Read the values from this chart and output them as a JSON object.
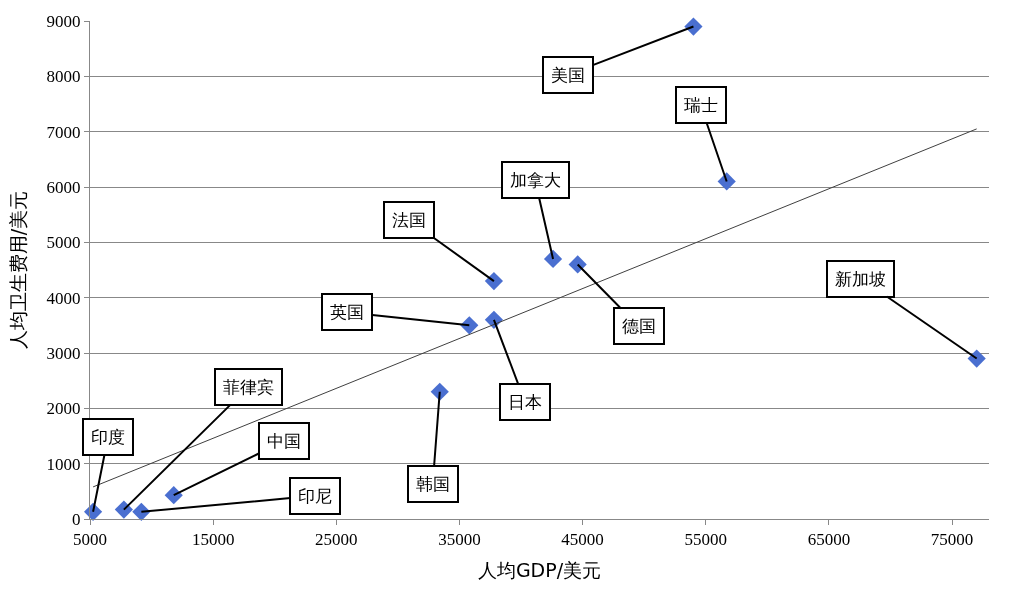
{
  "chart_data": {
    "type": "scatter",
    "xlabel": "人均GDP/美元",
    "ylabel": "人均卫生费用/美元",
    "xlim": [
      5000,
      78000
    ],
    "xticks": [
      5000,
      15000,
      25000,
      35000,
      45000,
      55000,
      65000,
      75000
    ],
    "ylim": [
      0,
      9000
    ],
    "yticks": [
      0,
      1000,
      2000,
      3000,
      4000,
      5000,
      6000,
      7000,
      8000,
      9000
    ],
    "grid": "y",
    "legend": false,
    "marker": "diamond",
    "series": [
      {
        "color": "#4a6fd0",
        "x": [
          54000,
          56700,
          42600,
          44600,
          37800,
          35800,
          37800,
          33400,
          77000,
          5250,
          7750,
          9170,
          11800
        ],
        "values": [
          8900,
          6100,
          4700,
          4600,
          4300,
          3500,
          3600,
          2300,
          2900,
          130,
          170,
          130,
          430
        ]
      },
      {
        "type": "line",
        "marker": "none",
        "color": "#404040",
        "x": [
          5250,
          77000
        ],
        "values": [
          580,
          7050
        ]
      }
    ],
    "annotations": [
      {
        "text": "美国",
        "x": 54000,
        "y": 8900
      },
      {
        "text": "瑞士",
        "x": 56700,
        "y": 6100
      },
      {
        "text": "加拿大",
        "x": 42600,
        "y": 4700
      },
      {
        "text": "德国",
        "x": 44600,
        "y": 4600
      },
      {
        "text": "法国",
        "x": 37800,
        "y": 4300
      },
      {
        "text": "英国",
        "x": 35800,
        "y": 3500
      },
      {
        "text": "日本",
        "x": 37800,
        "y": 3600
      },
      {
        "text": "韩国",
        "x": 33400,
        "y": 2300
      },
      {
        "text": "新加坡",
        "x": 77000,
        "y": 2900
      },
      {
        "text": "印度",
        "x": 5250,
        "y": 130
      },
      {
        "text": "菲律宾",
        "x": 7750,
        "y": 170
      },
      {
        "text": "印尼",
        "x": 9170,
        "y": 130
      },
      {
        "text": "中国",
        "x": 11800,
        "y": 430
      }
    ]
  }
}
